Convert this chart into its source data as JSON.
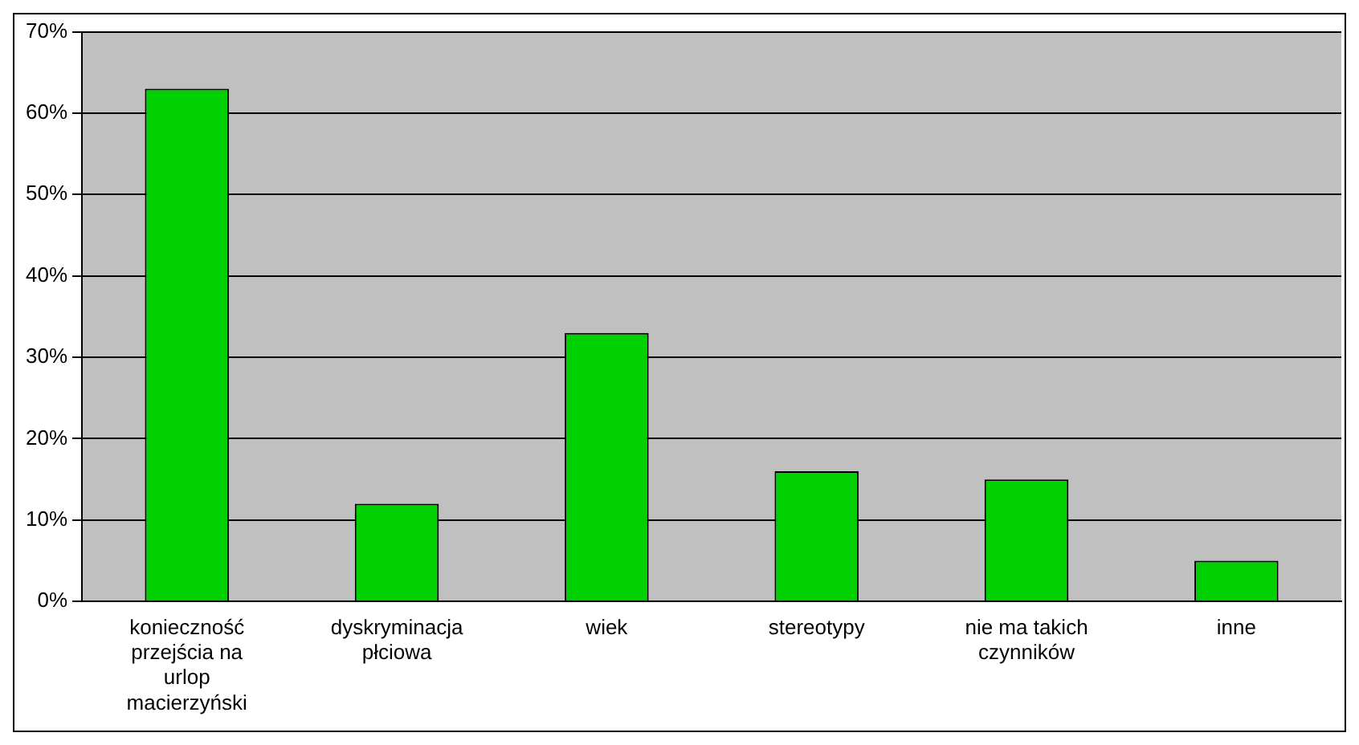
{
  "chart_data": {
    "type": "bar",
    "categories": [
      "konieczność przejścia na urlop macierzyński",
      "dyskryminacja płciowa",
      "wiek",
      "stereotypy",
      "nie ma takich czynników",
      "inne"
    ],
    "values": [
      63,
      12,
      33,
      16,
      15,
      5
    ],
    "color": "#00d000",
    "ylim": [
      0,
      70
    ],
    "yticks": [
      {
        "value": 0,
        "label": "0%"
      },
      {
        "value": 10,
        "label": "10%"
      },
      {
        "value": 20,
        "label": "20%"
      },
      {
        "value": 30,
        "label": "30%"
      },
      {
        "value": 40,
        "label": "40%"
      },
      {
        "value": 50,
        "label": "50%"
      },
      {
        "value": 60,
        "label": "60%"
      },
      {
        "value": 70,
        "label": "70%"
      }
    ],
    "grid": "y",
    "legend": false
  }
}
